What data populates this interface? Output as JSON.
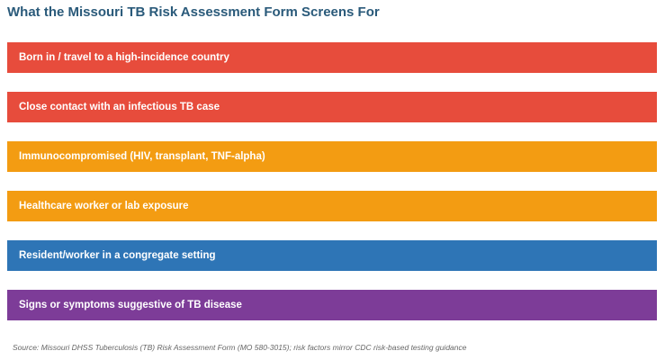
{
  "title": "What the Missouri TB Risk Assessment Form Screens For",
  "risk_factors": [
    {
      "label": "Born in / travel to a high-incidence country",
      "color": "#e74c3c"
    },
    {
      "label": "Close contact with an infectious TB case",
      "color": "#e74c3c"
    },
    {
      "label": "Immunocompromised (HIV, transplant, TNF-alpha)",
      "color": "#f39c12"
    },
    {
      "label": "Healthcare worker or lab exposure",
      "color": "#f39c12"
    },
    {
      "label": "Resident/worker in a congregate setting",
      "color": "#2e75b6"
    },
    {
      "label": "Signs or symptoms suggestive of TB disease",
      "color": "#7d3c98"
    }
  ],
  "source": "Source: Missouri DHSS Tuberculosis (TB) Risk Assessment Form (MO 580-3015); risk factors mirror CDC risk-based testing guidance"
}
